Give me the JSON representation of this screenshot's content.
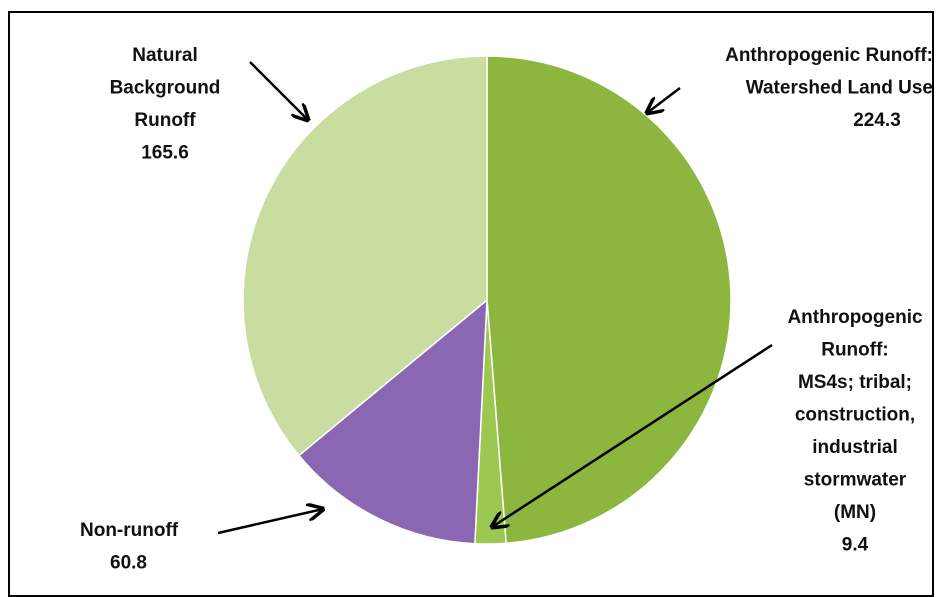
{
  "chart_data": {
    "type": "pie",
    "categories": [
      [
        "Anthropogenic Runoff:",
        "Watershed Land Use"
      ],
      [
        "Anthropogenic",
        "Runoff:",
        "MS4s; tribal;",
        "construction,",
        "industrial",
        "stormwater",
        "(MN)"
      ],
      [
        "Non-runoff"
      ],
      [
        "Natural",
        "Background",
        "Runoff"
      ]
    ],
    "values": [
      224.3,
      9.4,
      60.8,
      165.6
    ],
    "colors": [
      "#8db63e",
      "#9cc852",
      "#8a66b3",
      "#c8dd9f"
    ]
  }
}
